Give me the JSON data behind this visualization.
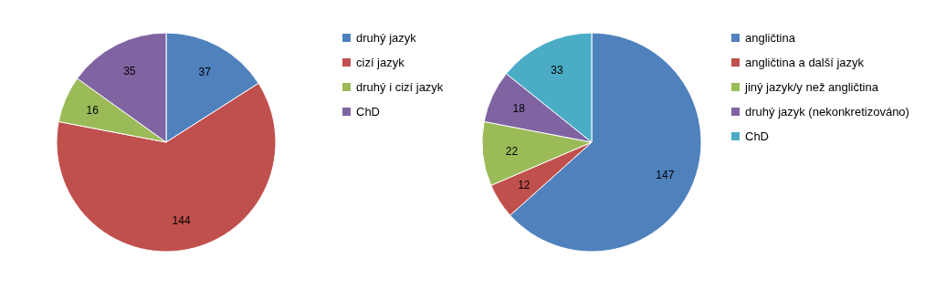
{
  "chart_data": [
    {
      "type": "pie",
      "categories": [
        "druhý jazyk",
        "cizí jazyk",
        "druhý i cizí jazyk",
        "ChD"
      ],
      "values": [
        37,
        144,
        16,
        35
      ],
      "colors": [
        "#4f81bd",
        "#c0504d",
        "#9bbb59",
        "#8064a2"
      ],
      "data_labels": true,
      "legend": "right"
    },
    {
      "type": "pie",
      "categories": [
        "angličtina",
        "angličtina a další jazyk",
        "jiný jazyk/y než angličtina",
        "druhý jazyk (nekonkretizováno)",
        "ChD"
      ],
      "values": [
        147,
        12,
        22,
        18,
        33
      ],
      "colors": [
        "#4f81bd",
        "#c0504d",
        "#9bbb59",
        "#8064a2",
        "#4bacc6"
      ],
      "data_labels": true,
      "legend": "right"
    }
  ]
}
